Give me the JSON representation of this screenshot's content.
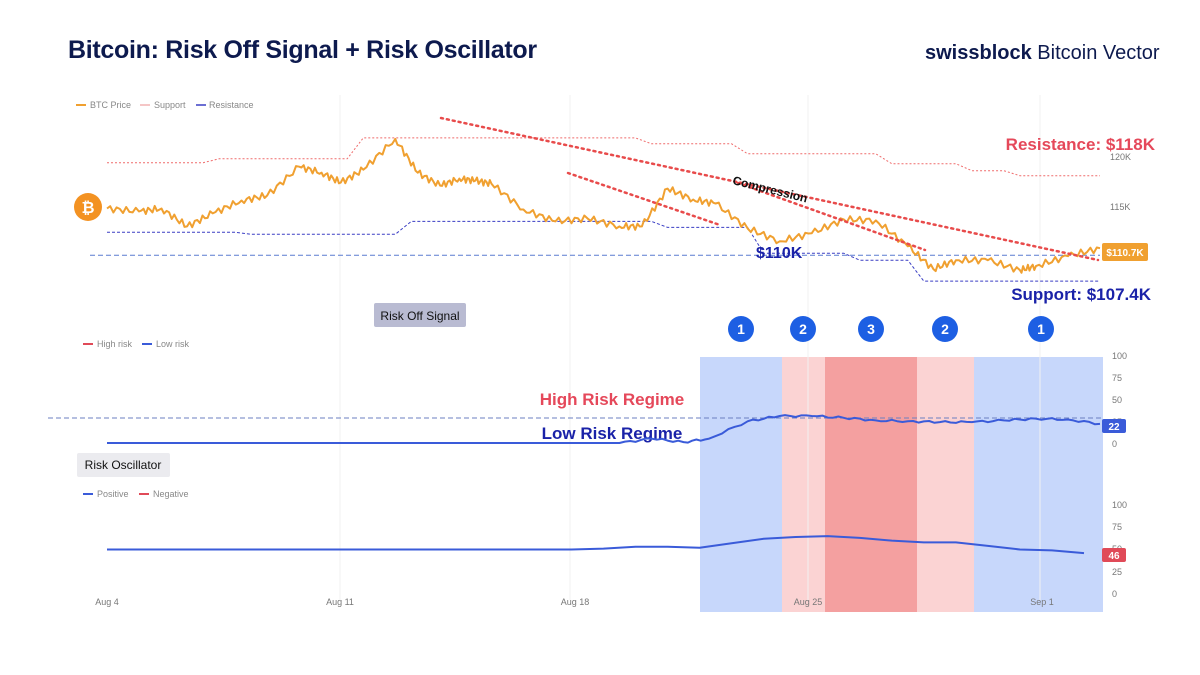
{
  "header": {
    "title": "Bitcoin: Risk Off Signal + Risk Oscillator",
    "brand_bold": "swissblock",
    "brand_rest": "Bitcoin Vector"
  },
  "colors": {
    "price": "#f0a030",
    "resistance": "#ef6b6b",
    "support": "#3b3fc4",
    "low_risk": "#3a5bd9",
    "high_risk": "#e04a58",
    "regime_low": "#c7d7fb",
    "regime_mid": "#fbd3d3",
    "regime_high": "#f4a0a0",
    "navy": "#1a22a8"
  },
  "chart_data": [
    {
      "type": "line",
      "panel": "price",
      "legend": [
        "BTC Price",
        "Support",
        "Resistance"
      ],
      "y_ticks": [
        "120K",
        "115K"
      ],
      "x_ticks": [
        "Aug 4",
        "Aug 11",
        "Aug 18",
        "Aug 25",
        "Sep 1"
      ],
      "x_range": [
        0,
        31
      ],
      "y_range": [
        106.5,
        123.8
      ],
      "series": [
        {
          "name": "BTC Price",
          "x": [
            0,
            1,
            1.7,
            2.5,
            3.3,
            4.2,
            5,
            6,
            6.7,
            7.3,
            8,
            9,
            9.7,
            10.4,
            11,
            11.5,
            12,
            13,
            14,
            15,
            16,
            16.7,
            17.5,
            18.3,
            19,
            20,
            21,
            22,
            23,
            24,
            25,
            25.8,
            26.5,
            27.5,
            28.5,
            29,
            30,
            31
          ],
          "y": [
            114.7,
            114.4,
            114.7,
            112.9,
            114.2,
            115.5,
            116.0,
            118.9,
            118.3,
            117.3,
            118.6,
            121.7,
            118.3,
            117.0,
            117.7,
            117.5,
            117.2,
            114.6,
            113.4,
            113.7,
            112.9,
            112.9,
            116.7,
            115.6,
            115.2,
            112.7,
            111.4,
            112.2,
            113.6,
            113.5,
            110.9,
            108.6,
            109.5,
            109.5,
            108.5,
            108.9,
            109.9,
            110.7
          ]
        },
        {
          "name": "Resistance",
          "x": [
            0,
            3,
            3.5,
            7.5,
            8,
            16.5,
            17,
            19.5,
            20,
            24,
            24.5,
            26.5,
            27,
            28,
            28.5,
            31
          ],
          "y": [
            119.3,
            119.3,
            119.7,
            119.7,
            121.8,
            121.8,
            121.2,
            121.2,
            120.2,
            120.2,
            119.2,
            119.2,
            118.5,
            118.5,
            118.0,
            118.0
          ]
        },
        {
          "name": "Support",
          "x": [
            0,
            4,
            4.5,
            9,
            9.5,
            17,
            17.5,
            20,
            20.5,
            23,
            23.5,
            25,
            25.5,
            31
          ],
          "y": [
            112.3,
            112.3,
            112.1,
            112.1,
            113.4,
            113.4,
            112.8,
            112.8,
            110.2,
            110.2,
            109.5,
            109.5,
            107.4,
            107.4
          ]
        }
      ],
      "levels": [
        {
          "value": 110,
          "label": "$110K"
        }
      ],
      "trendlines": [
        "Compression"
      ],
      "annotations": {
        "resistance": "Resistance: $118K",
        "support": "Support: $107.4K",
        "last_price": "$110.7K"
      }
    },
    {
      "type": "line",
      "panel": "risk_off_signal",
      "title": "Risk Off Signal",
      "legend": [
        "High risk",
        "Low risk"
      ],
      "y_ticks": [
        100,
        75,
        50,
        25,
        0
      ],
      "y_range": [
        0,
        100
      ],
      "threshold": 30,
      "series": [
        {
          "name": "Risk Off Signal",
          "x": [
            0,
            16,
            17,
            18,
            18.8,
            20,
            21,
            22,
            23,
            24,
            25,
            26,
            27,
            28,
            29,
            30,
            31
          ],
          "y": [
            0,
            0,
            5,
            1,
            5,
            25,
            31,
            31,
            29,
            26,
            25,
            24,
            24,
            26,
            28,
            27,
            22
          ]
        }
      ],
      "last_value": "22",
      "regimes": [
        "High Risk Regime",
        "Low Risk Regime"
      ],
      "phases": [
        "1",
        "2",
        "3",
        "2",
        "1"
      ]
    },
    {
      "type": "line",
      "panel": "risk_oscillator",
      "title": "Risk Oscillator",
      "legend": [
        "Positive",
        "Negative"
      ],
      "y_ticks": [
        100,
        75,
        50,
        25,
        0
      ],
      "y_range": [
        0,
        100
      ],
      "series": [
        {
          "name": "Risk Oscillator",
          "x": [
            0,
            14.5,
            15.5,
            16.5,
            17.5,
            18.5,
            19.5,
            20.5,
            21.5,
            22.5,
            23.5,
            24.5,
            25.5,
            26.5,
            27.5,
            28.5,
            29.5,
            30.5
          ],
          "y": [
            50,
            50,
            51,
            53,
            53,
            52,
            57,
            62,
            64,
            65,
            63,
            60,
            58,
            58,
            54,
            50,
            49,
            46
          ]
        }
      ],
      "last_value": "46"
    }
  ]
}
